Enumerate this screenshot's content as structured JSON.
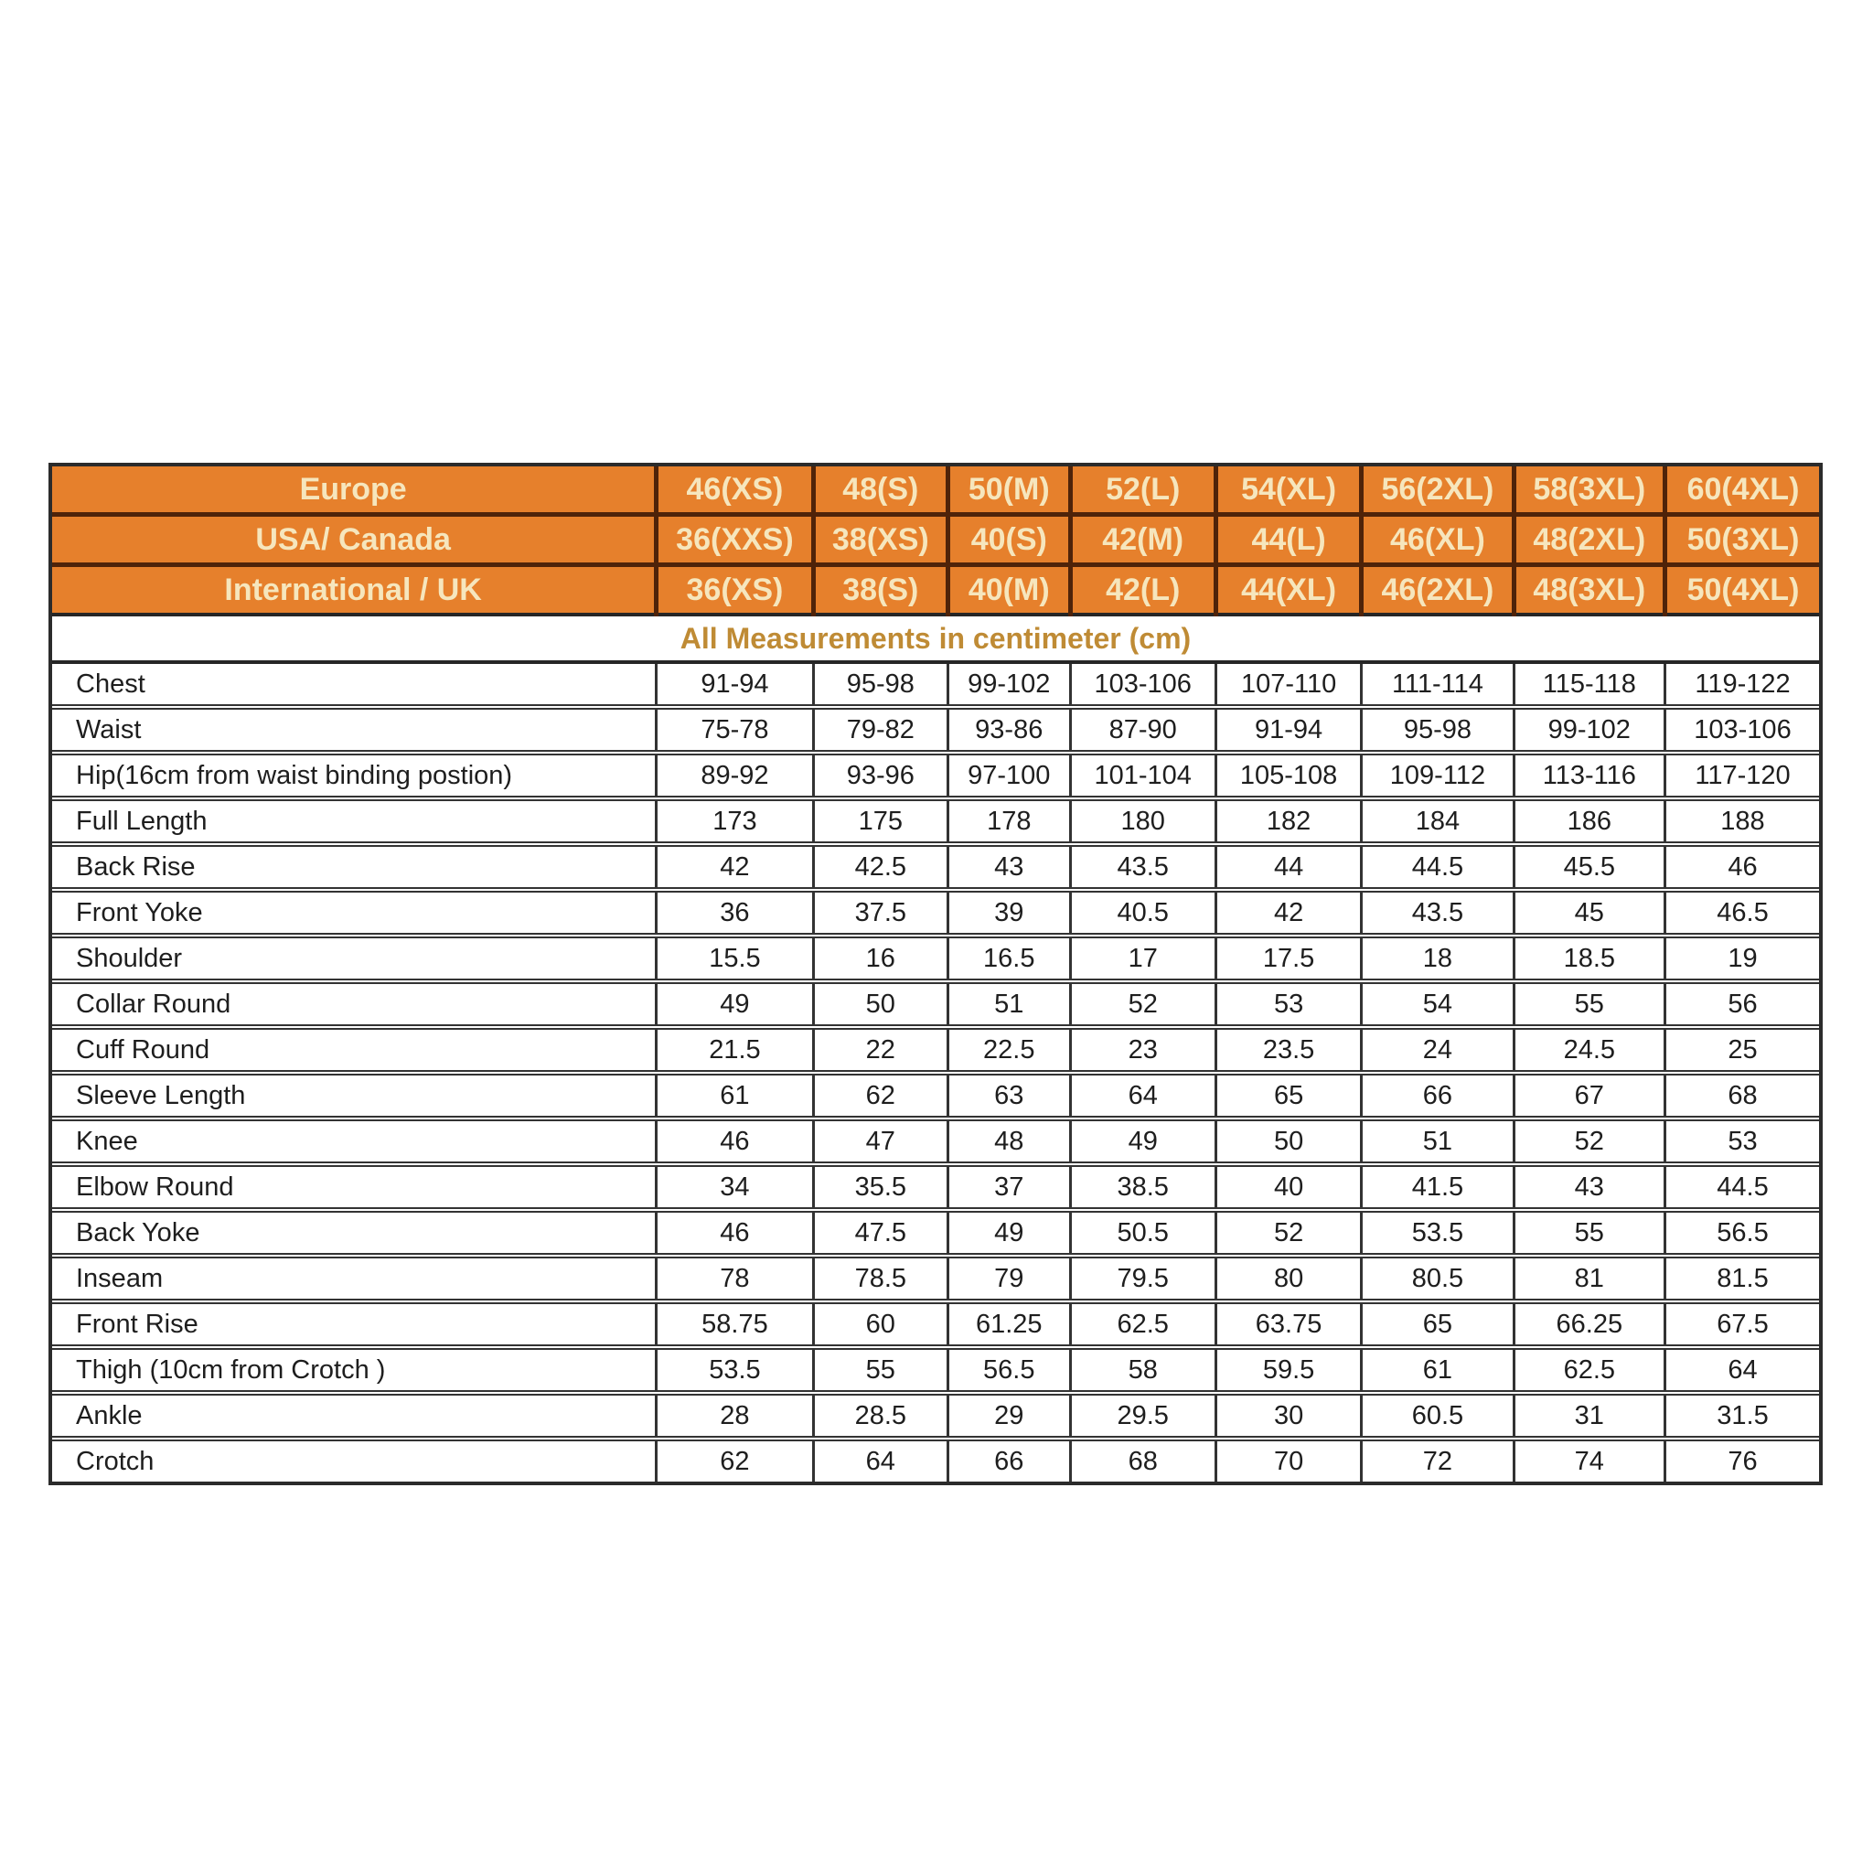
{
  "colors": {
    "header_background": "#e6802c",
    "header_text": "#f6e6bd",
    "header_divider": "#4f2309",
    "subtitle_text": "#bf8b35",
    "grid_border": "#333333",
    "data_text": "#1e1e1e",
    "page_background": "#ffffff"
  },
  "size_header": {
    "rows": [
      {
        "label": "Europe",
        "sizes": [
          "46(XS)",
          "48(S)",
          "50(M)",
          "52(L)",
          "54(XL)",
          "56(2XL)",
          "58(3XL)",
          "60(4XL)"
        ]
      },
      {
        "label": "USA/ Canada",
        "sizes": [
          "36(XXS)",
          "38(XS)",
          "40(S)",
          "42(M)",
          "44(L)",
          "46(XL)",
          "48(2XL)",
          "50(3XL)"
        ]
      },
      {
        "label": "International / UK",
        "sizes": [
          "36(XS)",
          "38(S)",
          "40(M)",
          "42(L)",
          "44(XL)",
          "46(2XL)",
          "48(3XL)",
          "50(4XL)"
        ]
      }
    ]
  },
  "subtitle": "All Measurements in centimeter (cm)",
  "measurements": [
    {
      "label": "Chest",
      "values": [
        "91-94",
        "95-98",
        "99-102",
        "103-106",
        "107-110",
        "111-114",
        "115-118",
        "119-122"
      ]
    },
    {
      "label": "Waist",
      "values": [
        "75-78",
        "79-82",
        "93-86",
        "87-90",
        "91-94",
        "95-98",
        "99-102",
        "103-106"
      ]
    },
    {
      "label": "Hip(16cm from waist binding postion)",
      "values": [
        "89-92",
        "93-96",
        "97-100",
        "101-104",
        "105-108",
        "109-112",
        "113-116",
        "117-120"
      ]
    },
    {
      "label": "Full Length",
      "values": [
        "173",
        "175",
        "178",
        "180",
        "182",
        "184",
        "186",
        "188"
      ]
    },
    {
      "label": "Back Rise",
      "values": [
        "42",
        "42.5",
        "43",
        "43.5",
        "44",
        "44.5",
        "45.5",
        "46"
      ]
    },
    {
      "label": "Front Yoke",
      "values": [
        "36",
        "37.5",
        "39",
        "40.5",
        "42",
        "43.5",
        "45",
        "46.5"
      ]
    },
    {
      "label": "Shoulder",
      "values": [
        "15.5",
        "16",
        "16.5",
        "17",
        "17.5",
        "18",
        "18.5",
        "19"
      ]
    },
    {
      "label": "Collar Round",
      "values": [
        "49",
        "50",
        "51",
        "52",
        "53",
        "54",
        "55",
        "56"
      ]
    },
    {
      "label": "Cuff Round",
      "values": [
        "21.5",
        "22",
        "22.5",
        "23",
        "23.5",
        "24",
        "24.5",
        "25"
      ]
    },
    {
      "label": "Sleeve Length",
      "values": [
        "61",
        "62",
        "63",
        "64",
        "65",
        "66",
        "67",
        "68"
      ]
    },
    {
      "label": "Knee",
      "values": [
        "46",
        "47",
        "48",
        "49",
        "50",
        "51",
        "52",
        "53"
      ]
    },
    {
      "label": "Elbow Round",
      "values": [
        "34",
        "35.5",
        "37",
        "38.5",
        "40",
        "41.5",
        "43",
        "44.5"
      ]
    },
    {
      "label": "Back Yoke",
      "values": [
        "46",
        "47.5",
        "49",
        "50.5",
        "52",
        "53.5",
        "55",
        "56.5"
      ]
    },
    {
      "label": "Inseam",
      "values": [
        "78",
        "78.5",
        "79",
        "79.5",
        "80",
        "80.5",
        "81",
        "81.5"
      ]
    },
    {
      "label": "Front Rise",
      "values": [
        "58.75",
        "60",
        "61.25",
        "62.5",
        "63.75",
        "65",
        "66.25",
        "67.5"
      ]
    },
    {
      "label": "Thigh (10cm from Crotch )",
      "values": [
        "53.5",
        "55",
        "56.5",
        "58",
        "59.5",
        "61",
        "62.5",
        "64"
      ]
    },
    {
      "label": "Ankle",
      "values": [
        "28",
        "28.5",
        "29",
        "29.5",
        "30",
        "60.5",
        "31",
        "31.5"
      ]
    },
    {
      "label": "Crotch",
      "values": [
        "62",
        "64",
        "66",
        "68",
        "70",
        "72",
        "74",
        "76"
      ]
    }
  ]
}
